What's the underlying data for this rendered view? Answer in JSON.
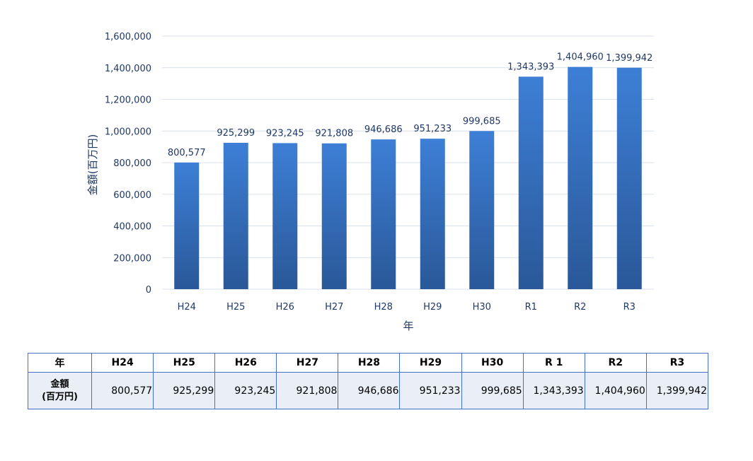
{
  "chart_data": {
    "type": "bar",
    "categories": [
      "H24",
      "H25",
      "H26",
      "H27",
      "H28",
      "H29",
      "H30",
      "R1",
      "R2",
      "R3"
    ],
    "values": [
      800577,
      925299,
      923245,
      921808,
      946686,
      951233,
      999685,
      1343393,
      1404960,
      1399942
    ],
    "data_labels": [
      "800,577",
      "925,299",
      "923,245",
      "921,808",
      "946,686",
      "951,233",
      "999,685",
      "1,343,393",
      "1,404,960",
      "1,399,942"
    ],
    "title": "",
    "xlabel": "年",
    "ylabel": "金額(百万円)",
    "ylim": [
      0,
      1600000
    ],
    "yticks": [
      0,
      200000,
      400000,
      600000,
      800000,
      1000000,
      1200000,
      1400000,
      1600000
    ],
    "ytick_labels": [
      "0",
      "200,000",
      "400,000",
      "600,000",
      "800,000",
      "1,000,000",
      "1,200,000",
      "1,400,000",
      "1,600,000"
    ],
    "grid": true,
    "legend": "none",
    "colors": {
      "bar_top": "#3d7fd6",
      "bar_bottom": "#2a5898",
      "grid": "#d9e1ec",
      "text": "#1f3864"
    }
  },
  "table": {
    "header_label": "年",
    "headers": [
      "H24",
      "H25",
      "H26",
      "H27",
      "H28",
      "H29",
      "H30",
      "R 1",
      "R2",
      "R3"
    ],
    "row_label_line1": "金額",
    "row_label_line2": "(百万円)",
    "values": [
      "800,577",
      "925,299",
      "923,245",
      "921,808",
      "946,686",
      "951,233",
      "999,685",
      "1,343,393",
      "1,404,960",
      "1,399,942"
    ],
    "border_color": "#4472c4",
    "cell_fill": "#e9eef7"
  }
}
